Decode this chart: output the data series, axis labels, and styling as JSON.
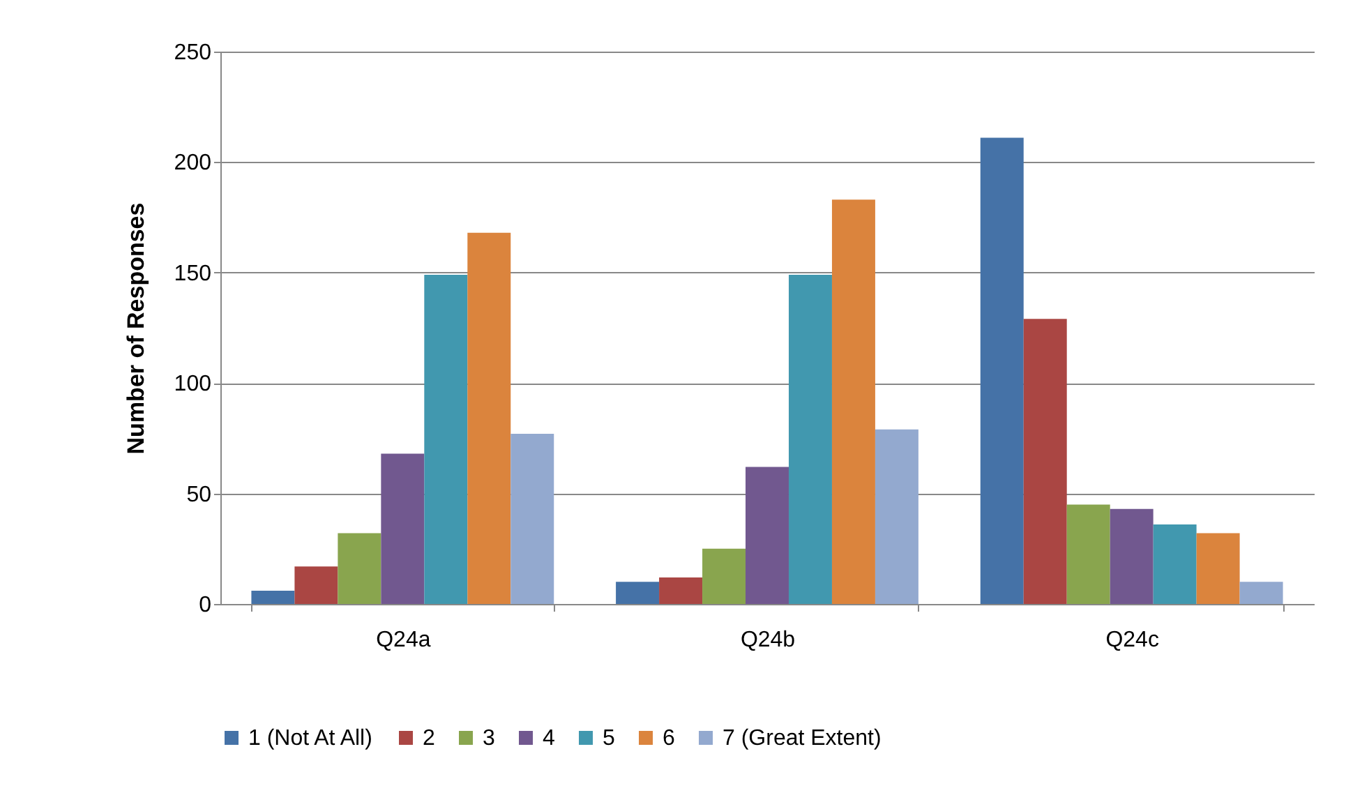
{
  "chart_data": {
    "type": "bar",
    "ylabel": "Number of Responses",
    "categories": [
      "Q24a",
      "Q24b",
      "Q24c"
    ],
    "series": [
      {
        "name": "1 (Not At All)",
        "color": "#4572a7",
        "values": [
          6,
          10,
          211
        ]
      },
      {
        "name": "2",
        "color": "#aa4643",
        "values": [
          17,
          12,
          129
        ]
      },
      {
        "name": "3",
        "color": "#89a54e",
        "values": [
          32,
          25,
          45
        ]
      },
      {
        "name": "4",
        "color": "#71588f",
        "values": [
          68,
          62,
          43
        ]
      },
      {
        "name": "5",
        "color": "#4198af",
        "values": [
          149,
          149,
          36
        ]
      },
      {
        "name": "6",
        "color": "#db843d",
        "values": [
          168,
          183,
          32
        ]
      },
      {
        "name": "7 (Great Extent)",
        "color": "#93a9cf",
        "values": [
          77,
          79,
          10
        ]
      }
    ],
    "ylim": [
      0,
      250
    ],
    "yticks": [
      0,
      50,
      100,
      150,
      200,
      250
    ],
    "grid": "y",
    "legend": "bottom"
  }
}
